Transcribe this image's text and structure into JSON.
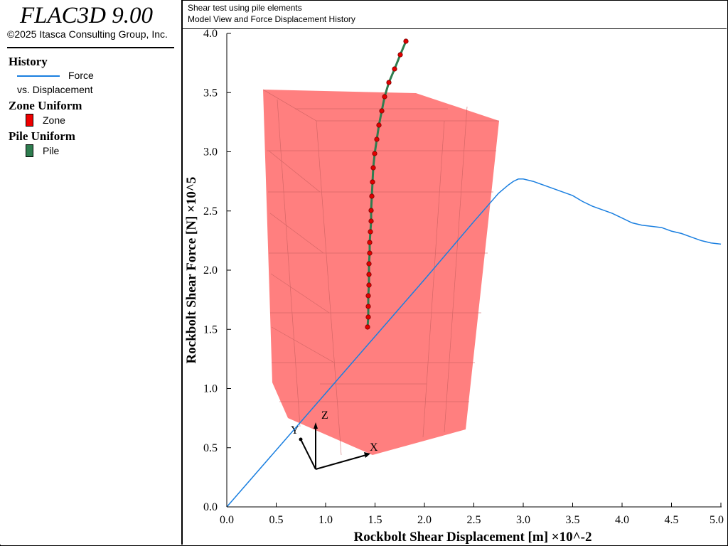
{
  "app": {
    "title": "FLAC3D 9.00",
    "copyright": "©2025 Itasca Consulting Group, Inc."
  },
  "legend": {
    "history_heading": "History",
    "history_series_line1": "Force",
    "history_series_line2": "vs. Displacement",
    "history_color": "#1a7fe0",
    "zone_heading": "Zone Uniform",
    "zone_label": "Zone",
    "zone_color": "#ee0000",
    "pile_heading": "Pile Uniform",
    "pile_label": "Pile",
    "pile_color": "#2e7d4f"
  },
  "header": {
    "title": "Shear test using pile elements",
    "subtitle": "Model View and Force Displacement History"
  },
  "axes_glyph": {
    "x": "X",
    "y": "Y",
    "z": "Z"
  },
  "chart_data": {
    "type": "line",
    "xlabel": "Rockbolt Shear Displacement [m] ×10^-2",
    "ylabel": "Rockbolt Shear Force [N] ×10^5",
    "xlim": [
      0.0,
      5.0
    ],
    "ylim": [
      0.0,
      4.0
    ],
    "x_ticks": [
      "0.0",
      "0.5",
      "1.0",
      "1.5",
      "2.0",
      "2.5",
      "3.0",
      "3.5",
      "4.0",
      "4.5",
      "5.0"
    ],
    "y_ticks": [
      "0.0",
      "0.5",
      "1.0",
      "1.5",
      "2.0",
      "2.5",
      "3.0",
      "3.5",
      "4.0"
    ],
    "grid": false,
    "series": [
      {
        "name": "Force vs. Displacement",
        "color": "#1a7fe0",
        "x": [
          0.0,
          0.5,
          1.0,
          1.5,
          2.0,
          2.5,
          2.75,
          2.85,
          2.9,
          2.95,
          3.0,
          3.1,
          3.2,
          3.3,
          3.4,
          3.5,
          3.6,
          3.7,
          3.8,
          3.9,
          4.0,
          4.1,
          4.2,
          4.3,
          4.4,
          4.5,
          4.6,
          4.7,
          4.8,
          4.9,
          5.0
        ],
        "y": [
          0.0,
          0.48,
          0.96,
          1.44,
          1.92,
          2.41,
          2.65,
          2.72,
          2.75,
          2.77,
          2.77,
          2.75,
          2.72,
          2.69,
          2.66,
          2.63,
          2.58,
          2.54,
          2.51,
          2.48,
          2.44,
          2.4,
          2.38,
          2.37,
          2.36,
          2.33,
          2.31,
          2.28,
          2.25,
          2.23,
          2.22
        ]
      }
    ]
  }
}
